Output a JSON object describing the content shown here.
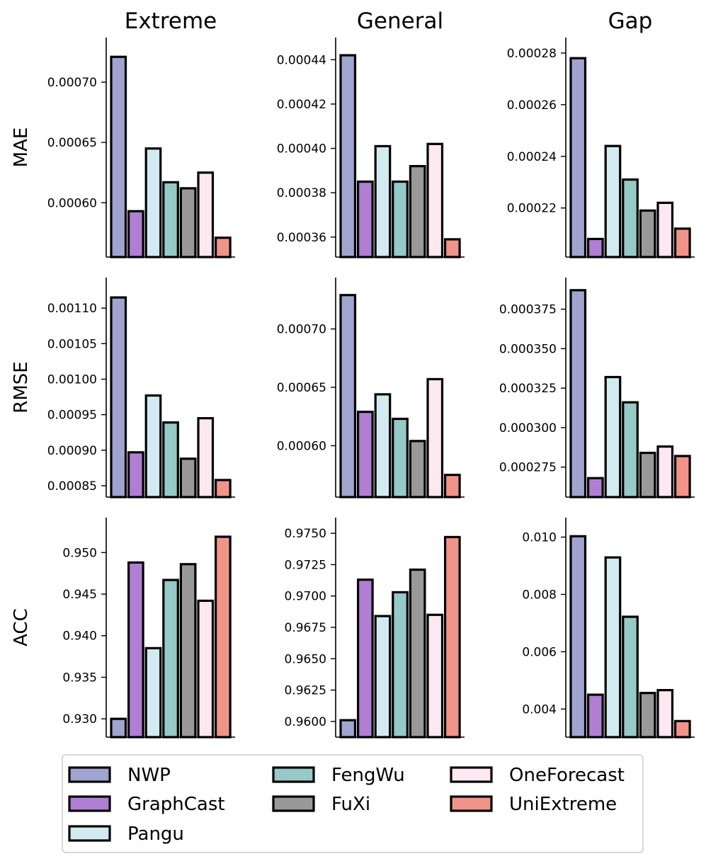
{
  "chart_data": {
    "type": "bar",
    "series_names": [
      "NWP",
      "GraphCast",
      "Pangu",
      "FengWu",
      "FuXi",
      "OneForecast",
      "UniExtreme"
    ],
    "colors": [
      "#a0a4cf",
      "#b07fd3",
      "#d2eaf0",
      "#97c9c6",
      "#999999",
      "#fbe8f0",
      "#f0948a"
    ],
    "column_titles": [
      "Extreme",
      "General",
      "Gap"
    ],
    "row_labels": [
      "MAE",
      "RMSE",
      "ACC"
    ],
    "legend": {
      "position": "bottom",
      "entries": [
        "NWP",
        "GraphCast",
        "Pangu",
        "FengWu",
        "FuXi",
        "OneForecast",
        "UniExtreme"
      ]
    },
    "panels": [
      {
        "row": "MAE",
        "column": "Extreme",
        "ylim": [
          0.000555,
          0.000737
        ],
        "ticks": [
          "0.00060",
          "0.00065",
          "0.00070"
        ],
        "tick_values": [
          0.0006,
          0.00065,
          0.0007
        ],
        "values": [
          0.000721,
          0.000593,
          0.000645,
          0.000617,
          0.000612,
          0.000625,
          0.000571
        ]
      },
      {
        "row": "MAE",
        "column": "General",
        "ylim": [
          0.000351,
          0.00045
        ],
        "ticks": [
          "0.00036",
          "0.00038",
          "0.00040",
          "0.00042",
          "0.00044"
        ],
        "tick_values": [
          0.00036,
          0.00038,
          0.0004,
          0.00042,
          0.00044
        ],
        "values": [
          0.000442,
          0.000385,
          0.000401,
          0.000385,
          0.000392,
          0.000402,
          0.000359
        ]
      },
      {
        "row": "MAE",
        "column": "Gap",
        "ylim": [
          0.000201,
          0.000286
        ],
        "ticks": [
          "0.00022",
          "0.00024",
          "0.00026",
          "0.00028"
        ],
        "tick_values": [
          0.00022,
          0.00024,
          0.00026,
          0.00028
        ],
        "values": [
          0.000278,
          0.000208,
          0.000244,
          0.000231,
          0.000219,
          0.000222,
          0.000212
        ]
      },
      {
        "row": "RMSE",
        "column": "Extreme",
        "ylim": [
          0.000834,
          0.001143
        ],
        "ticks": [
          "0.00085",
          "0.00090",
          "0.00095",
          "0.00100",
          "0.00105",
          "0.00110"
        ],
        "tick_values": [
          0.00085,
          0.0009,
          0.00095,
          0.001,
          0.00105,
          0.0011
        ],
        "values": [
          0.001115,
          0.000897,
          0.000977,
          0.000939,
          0.000888,
          0.000945,
          0.000858
        ]
      },
      {
        "row": "RMSE",
        "column": "General",
        "ylim": [
          0.000556,
          0.000744
        ],
        "ticks": [
          "0.00060",
          "0.00065",
          "0.00070"
        ],
        "tick_values": [
          0.0006,
          0.00065,
          0.0007
        ],
        "values": [
          0.000729,
          0.000629,
          0.000644,
          0.000623,
          0.000604,
          0.000657,
          0.000575
        ]
      },
      {
        "row": "RMSE",
        "column": "Gap",
        "ylim": [
          0.000256,
          0.000395
        ],
        "ticks": [
          "0.000275",
          "0.000300",
          "0.000325",
          "0.000350",
          "0.000375"
        ],
        "tick_values": [
          0.000275,
          0.0003,
          0.000325,
          0.00035,
          0.000375
        ],
        "values": [
          0.000387,
          0.000268,
          0.000332,
          0.000316,
          0.000284,
          0.000288,
          0.000282
        ]
      },
      {
        "row": "ACC",
        "column": "Extreme",
        "ylim": [
          0.9278,
          0.9542
        ],
        "ticks": [
          "0.930",
          "0.935",
          "0.940",
          "0.945",
          "0.950"
        ],
        "tick_values": [
          0.93,
          0.935,
          0.94,
          0.945,
          0.95
        ],
        "values": [
          0.93,
          0.9488,
          0.9385,
          0.9467,
          0.9486,
          0.9442,
          0.9519
        ]
      },
      {
        "row": "ACC",
        "column": "General",
        "ylim": [
          0.95875,
          0.97625
        ],
        "ticks": [
          "0.9600",
          "0.9625",
          "0.9650",
          "0.9675",
          "0.9700",
          "0.9725",
          "0.9750"
        ],
        "tick_values": [
          0.96,
          0.9625,
          0.965,
          0.9675,
          0.97,
          0.9725,
          0.975
        ],
        "values": [
          0.9601,
          0.9713,
          0.9684,
          0.9703,
          0.9721,
          0.9685,
          0.9747
        ]
      },
      {
        "row": "ACC",
        "column": "Gap",
        "ylim": [
          0.00302,
          0.01068
        ],
        "ticks": [
          "0.004",
          "0.006",
          "0.008",
          "0.010"
        ],
        "tick_values": [
          0.004,
          0.006,
          0.008,
          0.01
        ],
        "values": [
          0.01003,
          0.0045,
          0.00929,
          0.00722,
          0.00456,
          0.00466,
          0.00358
        ]
      }
    ]
  }
}
